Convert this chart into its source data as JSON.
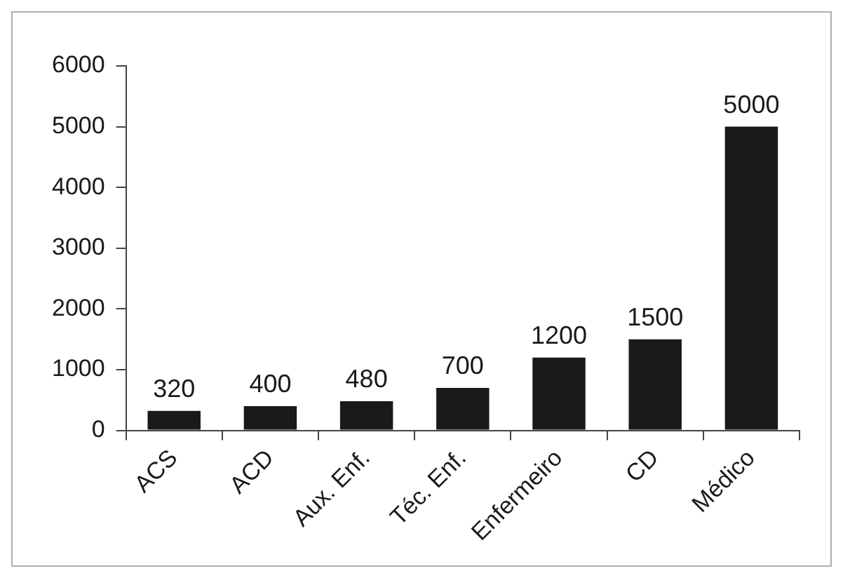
{
  "chart_data": {
    "type": "bar",
    "categories": [
      "ACS",
      "ACD",
      "Aux. Enf.",
      "Téc. Enf.",
      "Enfermeiro",
      "CD",
      "Médico"
    ],
    "values": [
      320,
      400,
      480,
      700,
      1200,
      1500,
      5000
    ],
    "color": "#1a1a1a",
    "ylim": [
      0,
      6000
    ],
    "yticks": [
      0,
      1000,
      2000,
      3000,
      4000,
      5000,
      6000
    ],
    "grid": false,
    "legend": false,
    "data_labels": true
  }
}
